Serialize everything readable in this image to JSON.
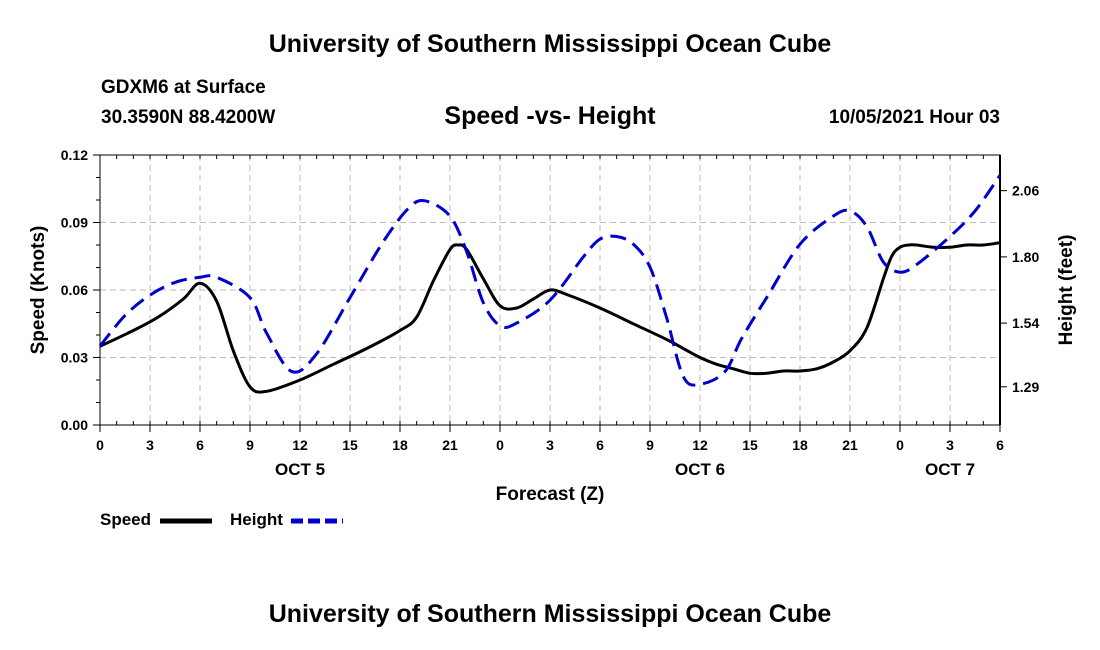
{
  "header": {
    "title": "University of Southern Mississippi Ocean Cube",
    "station": "GDXM6 at Surface",
    "coords": "30.3590N  88.4200W",
    "chart_title": "Speed -vs- Height",
    "datetime": "10/05/2021 Hour 03"
  },
  "footer": {
    "title": "University of Southern Mississippi Ocean Cube"
  },
  "chart_data": {
    "type": "line",
    "title": "Speed -vs- Height",
    "xlabel": "Forecast (Z)",
    "ylabel": "Speed (Knots)",
    "y2label": "Height (feet)",
    "x_range": [
      0,
      54
    ],
    "ylim": [
      0,
      0.12
    ],
    "y2lim": [
      1.14,
      2.2
    ],
    "x_ticks": [
      0,
      3,
      6,
      9,
      12,
      15,
      18,
      21,
      24,
      27,
      30,
      33,
      36,
      39,
      42,
      45,
      48,
      51,
      54
    ],
    "x_tick_labels": [
      "0",
      "3",
      "6",
      "9",
      "12",
      "15",
      "18",
      "21",
      "0",
      "3",
      "6",
      "9",
      "12",
      "15",
      "18",
      "21",
      "0",
      "3",
      "6"
    ],
    "y_ticks": [
      0,
      0.03,
      0.06,
      0.09,
      0.12
    ],
    "y_tick_labels": [
      "0.00",
      "0.03",
      "0.06",
      "0.09",
      "0.12"
    ],
    "y2_ticks": [
      1.29,
      1.54,
      1.8,
      2.06
    ],
    "y2_tick_labels": [
      "1.29",
      "1.54",
      "1.80",
      "2.06"
    ],
    "day_labels": [
      {
        "x": 12,
        "label": "OCT 5"
      },
      {
        "x": 36,
        "label": "OCT 6"
      },
      {
        "x": 51,
        "label": "OCT 7"
      }
    ],
    "grid": true,
    "legend_position": "bottom-left",
    "series": [
      {
        "name": "Speed",
        "axis": "left",
        "color": "#000000",
        "style": "solid",
        "x": [
          0,
          2,
          3.5,
          5,
          6,
          7,
          8,
          9,
          10,
          12,
          14,
          16,
          18,
          19,
          20,
          21,
          21.5,
          22,
          23,
          24,
          25,
          26,
          27,
          28,
          30,
          32,
          34,
          35,
          36,
          37,
          38,
          39,
          40,
          41,
          42,
          43,
          44,
          45,
          46,
          47,
          47.5,
          48,
          48.5,
          49,
          50,
          51,
          52,
          53,
          54
        ],
        "values": [
          0.035,
          0.042,
          0.048,
          0.056,
          0.063,
          0.055,
          0.033,
          0.017,
          0.015,
          0.02,
          0.027,
          0.034,
          0.042,
          0.048,
          0.064,
          0.078,
          0.08,
          0.078,
          0.065,
          0.053,
          0.052,
          0.056,
          0.06,
          0.058,
          0.052,
          0.045,
          0.038,
          0.034,
          0.03,
          0.027,
          0.025,
          0.023,
          0.023,
          0.024,
          0.024,
          0.025,
          0.028,
          0.033,
          0.043,
          0.065,
          0.075,
          0.079,
          0.08,
          0.08,
          0.079,
          0.079,
          0.08,
          0.08,
          0.081
        ]
      },
      {
        "name": "Height",
        "axis": "right",
        "color": "#0000cc",
        "style": "dashed",
        "x": [
          0,
          1.5,
          3,
          4.5,
          6,
          7,
          9,
          10,
          11.5,
          13,
          15,
          17,
          18.5,
          19.5,
          21,
          22,
          23,
          24,
          25,
          27,
          29,
          30,
          31,
          32,
          33,
          34,
          35,
          36,
          37.5,
          38.5,
          40,
          42,
          44,
          45,
          46,
          47,
          48,
          49,
          51,
          52.5,
          54
        ],
        "values": [
          1.45,
          1.57,
          1.65,
          1.7,
          1.72,
          1.72,
          1.64,
          1.5,
          1.35,
          1.42,
          1.64,
          1.86,
          1.99,
          2.02,
          1.96,
          1.82,
          1.62,
          1.53,
          1.54,
          1.63,
          1.8,
          1.87,
          1.88,
          1.85,
          1.76,
          1.56,
          1.33,
          1.3,
          1.35,
          1.48,
          1.64,
          1.85,
          1.96,
          1.98,
          1.92,
          1.78,
          1.74,
          1.77,
          1.88,
          1.98,
          2.12
        ]
      }
    ]
  }
}
